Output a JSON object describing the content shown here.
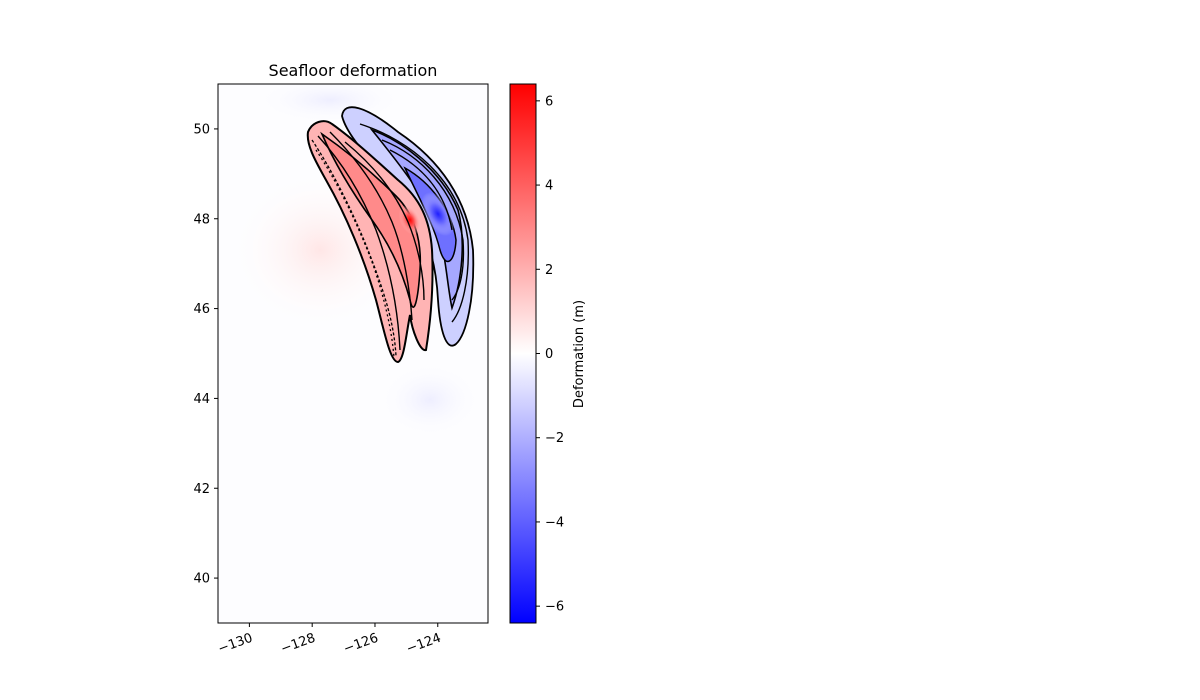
{
  "chart_data": {
    "type": "heatmap",
    "title": "Seafloor deformation",
    "xlabel": "",
    "ylabel": "",
    "xlim": [
      -131,
      -122.4
    ],
    "ylim": [
      39,
      51
    ],
    "xticks": [
      -130,
      -128,
      -126,
      -124
    ],
    "xtick_labels": [
      "−130",
      "−128",
      "−126",
      "−124"
    ],
    "yticks": [
      40,
      42,
      44,
      46,
      48,
      50
    ],
    "ytick_labels": [
      "40",
      "42",
      "44",
      "46",
      "48",
      "50"
    ],
    "colorbar": {
      "label": "Deformation (m)",
      "range": [
        -6.4,
        6.4
      ],
      "ticks": [
        -6,
        -4,
        -2,
        0,
        2,
        4,
        6
      ],
      "tick_labels": [
        "−6",
        "−4",
        "−2",
        "0",
        "2",
        "4",
        "6"
      ],
      "colormap": "bwr",
      "colors": [
        "#0000ff",
        "#ffffff",
        "#ff0000"
      ]
    },
    "uplift_zone": {
      "sign": "positive",
      "trace": [
        [
          -128.0,
          49.9
        ],
        [
          -127.2,
          49.3
        ],
        [
          -126.6,
          48.5
        ],
        [
          -126.2,
          47.6
        ],
        [
          -125.8,
          46.6
        ],
        [
          -125.5,
          45.6
        ],
        [
          -125.3,
          44.9
        ]
      ],
      "peak": {
        "lon": -125.0,
        "lat": 48.0,
        "value": 6.4
      }
    },
    "subsidence_zone": {
      "sign": "negative",
      "trace": [
        [
          -126.7,
          50.3
        ],
        [
          -125.6,
          49.3
        ],
        [
          -124.6,
          48.3
        ],
        [
          -124.0,
          47.2
        ],
        [
          -123.7,
          46.2
        ],
        [
          -123.8,
          45.2
        ]
      ],
      "peak": {
        "lon": -124.6,
        "lat": 48.1,
        "value": -5.0
      }
    },
    "grid": false,
    "contours": "black"
  }
}
